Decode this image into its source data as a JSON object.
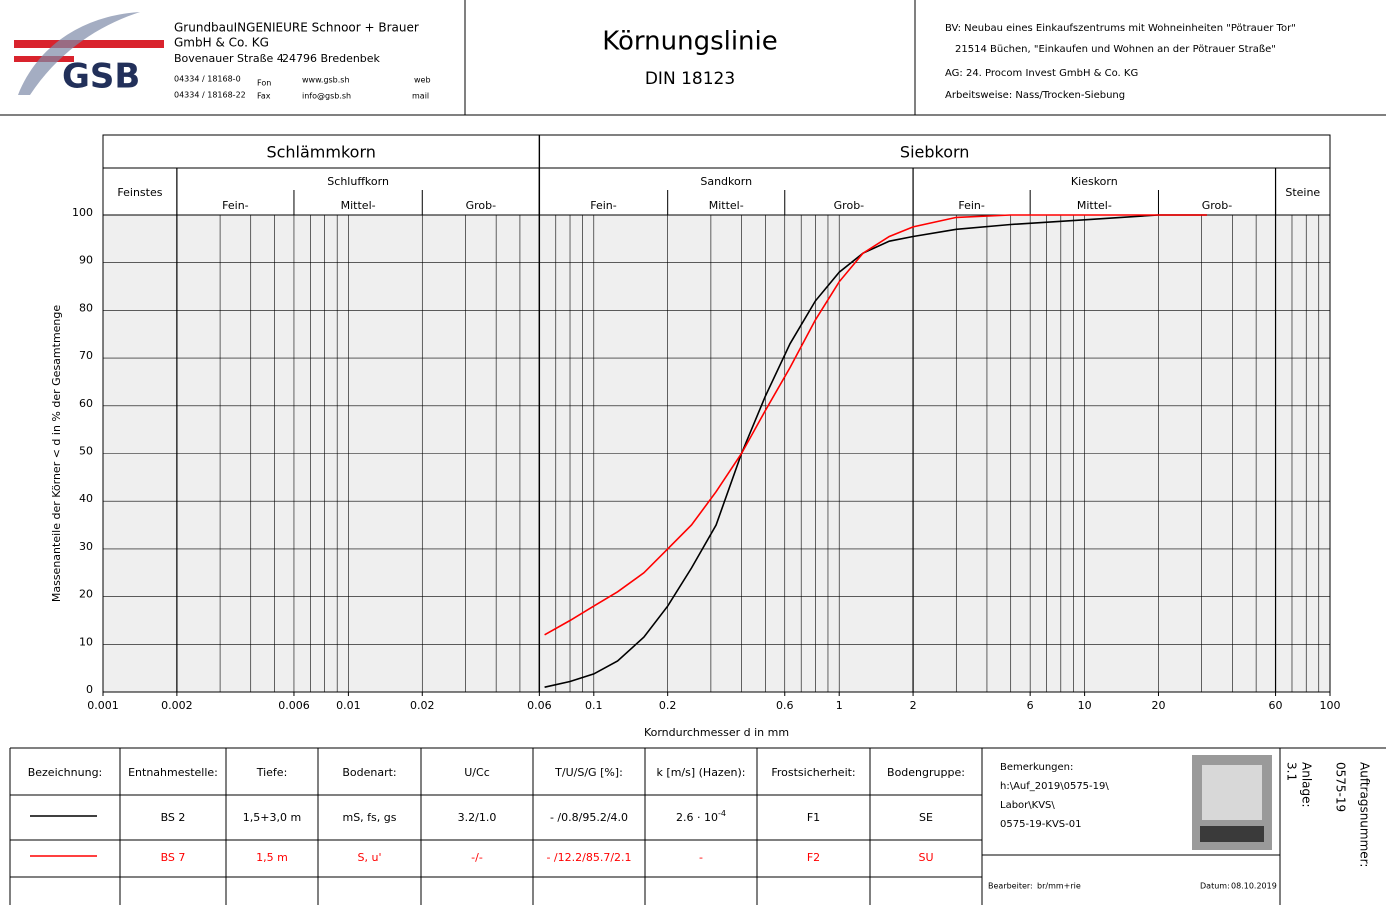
{
  "header": {
    "logo": "GSB",
    "company": {
      "name": "GrundbauINGENIEURE  Schnoor + Brauer",
      "form": "GmbH & Co. KG",
      "street": "Bovenauer Straße 4",
      "city": "24796 Bredenbek",
      "phone": "04334 / 18168-0",
      "phone_label": "Fon",
      "fax": "04334 / 18168-22",
      "fax_label": "Fax",
      "web": "www.gsb.sh",
      "web_label": "web",
      "mail": "info@gsb.sh",
      "mail_label": "mail"
    },
    "title": "Körnungslinie",
    "subtitle": "DIN 18123",
    "project": [
      "BV:  Neubau eines Einkaufszentrums mit Wohneinheiten \"Pötrauer Tor\"",
      "21514 Büchen, \"Einkaufen und Wohnen an der Pötrauer Straße\"",
      "AG:  24. Procom Invest GmbH & Co. KG",
      "Arbeitsweise:  Nass/Trocken-Siebung"
    ]
  },
  "chart_data": {
    "type": "line",
    "x_scale": "log",
    "grid": true,
    "x_label": "Korndurchmesser d in mm",
    "y_label": "Massenanteile der Körner < d in % der Gesamtmenge",
    "zones": {
      "main": [
        "Schlämmkorn",
        "Siebkorn"
      ],
      "groups": [
        "Feinstes",
        "Schluffkorn",
        "Sandkorn",
        "Kieskorn",
        "Steine"
      ],
      "sub": [
        "Fein-",
        "Mittel-",
        "Grob-",
        "Fein-",
        "Mittel-",
        "Grob-",
        "Fein-",
        "Mittel-",
        "Grob-"
      ]
    },
    "xlim": [
      0.001,
      100
    ],
    "ylim": [
      0,
      100
    ],
    "xticks": [
      0.001,
      0.002,
      0.006,
      0.01,
      0.02,
      0.06,
      0.1,
      0.2,
      0.6,
      1,
      2,
      6,
      10,
      20,
      60,
      100
    ],
    "yticks": [
      0,
      10,
      20,
      30,
      40,
      50,
      60,
      70,
      80,
      90,
      100
    ],
    "series": [
      {
        "name": "BS 2",
        "color": "#000000",
        "x": [
          0.063,
          0.08,
          0.1,
          0.125,
          0.16,
          0.2,
          0.25,
          0.315,
          0.4,
          0.5,
          0.63,
          0.8,
          1,
          1.25,
          1.6,
          2,
          3,
          5,
          10,
          20,
          31.5
        ],
        "values": [
          1,
          2.2,
          3.8,
          6.5,
          11.5,
          18,
          26,
          35,
          50,
          62,
          73,
          82,
          88,
          92,
          94.5,
          95.5,
          97,
          98,
          99,
          100,
          100
        ]
      },
      {
        "name": "BS 7",
        "color": "#ff0000",
        "x": [
          0.063,
          0.08,
          0.1,
          0.125,
          0.16,
          0.2,
          0.25,
          0.315,
          0.4,
          0.5,
          0.63,
          0.8,
          1,
          1.25,
          1.6,
          2,
          3,
          5,
          10,
          20,
          31.5
        ],
        "values": [
          12,
          15,
          18,
          21,
          25,
          30,
          35,
          42,
          50,
          59,
          68,
          78,
          86,
          92,
          95.5,
          97.5,
          99.5,
          100,
          100,
          100,
          100
        ]
      }
    ]
  },
  "table": {
    "headers": [
      "Bezeichnung:",
      "Entnahmestelle:",
      "Tiefe:",
      "Bodenart:",
      "U/Cc",
      "T/U/S/G [%]:",
      "k [m/s] (Hazen):",
      "Frostsicherheit:",
      "Bodengruppe:"
    ],
    "rows": [
      [
        "1,5+3,0 m",
        "mS, fs, gs",
        "3.2/1.0",
        "- /0.8/95.2/4.0",
        {
          "base": "2.6 · 10",
          "exponent": "-4"
        },
        "F1",
        "SE"
      ],
      [
        "1,5 m",
        "S, u'",
        "-/-",
        "- /12.2/85.7/2.1",
        {
          "base": "-"
        },
        "F2",
        "SU"
      ]
    ]
  },
  "remarks": {
    "label": "Bemerkungen:",
    "lines": [
      "h:\\Auf_2019\\0575-19\\",
      "Labor\\KVS\\",
      "0575-19-KVS-01"
    ],
    "editor_label": "Bearbeiter:",
    "editor": "br/mm+rie",
    "date_label": "Datum:",
    "date": "08.10.2019"
  },
  "attachment": {
    "label": "Anlage:",
    "value": "3.1"
  },
  "order": {
    "label": "Auftragsnummer:",
    "value": "0575-19"
  }
}
